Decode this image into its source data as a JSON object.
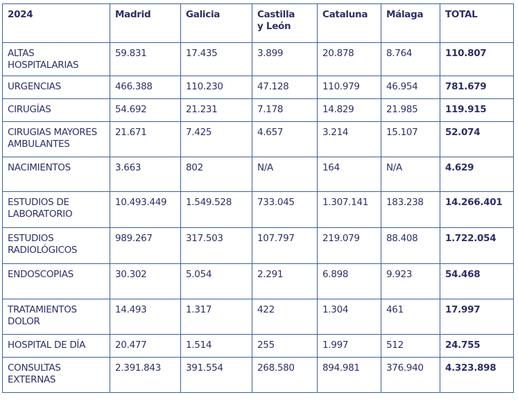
{
  "table": {
    "headers": [
      "2024",
      "Madrid",
      "Galicia",
      "Castilla\ny León",
      "Cataluna",
      "Málaga",
      "TOTAL"
    ],
    "rows": [
      {
        "label": "ALTAS\nHOSPITALARIAS",
        "values": [
          "59.831",
          "17.435",
          "3.899",
          "20.878",
          "8.764"
        ],
        "total": "110.807"
      },
      {
        "label": "URGENCIAS",
        "values": [
          "466.388",
          "110.230",
          "47.128",
          "110.979",
          "46.954"
        ],
        "total": "781.679"
      },
      {
        "label": "CIRUGÍAS",
        "values": [
          "54.692",
          "21.231",
          "7.178",
          "14.829",
          "21.985"
        ],
        "total": "119.915"
      },
      {
        "label": "CIRUGIAS MAYORES\nAMBULANTES",
        "values": [
          "21.671",
          "7.425",
          "4.657",
          "3.214",
          "15.107"
        ],
        "total": "52.074"
      },
      {
        "label": "NACIMIENTOS",
        "values": [
          "3.663",
          "802",
          "N/A",
          "164",
          "N/A"
        ],
        "total": "4.629"
      },
      {
        "label": "ESTUDIOS DE\nLABORATORIO",
        "values": [
          "10.493.449",
          "1.549.528",
          "733.045",
          "1.307.141",
          "183.238"
        ],
        "total": "14.266.401"
      },
      {
        "label": "ESTUDIOS\nRADIOLÓGICOS",
        "values": [
          "989.267",
          "317.503",
          "107.797",
          "219.079",
          "88.408"
        ],
        "total": "1.722.054"
      },
      {
        "label": "ENDOSCOPIAS",
        "values": [
          "30.302",
          "5.054",
          "2.291",
          "6.898",
          "9.923"
        ],
        "total": "54.468"
      },
      {
        "label": "TRATAMIENTOS\nDOLOR",
        "values": [
          "14.493",
          "1.317",
          "422",
          "1.304",
          "461"
        ],
        "total": "17.997"
      },
      {
        "label": "HOSPITAL DE DÍA",
        "values": [
          "20.477",
          "1.514",
          "255",
          "1.997",
          "512"
        ],
        "total": "24.755"
      },
      {
        "label": "CONSULTAS\nEXTERNAS",
        "values": [
          "2.391.843",
          "391.554",
          "268.580",
          "894.981",
          "376.940"
        ],
        "total": "4.323.898"
      }
    ]
  }
}
